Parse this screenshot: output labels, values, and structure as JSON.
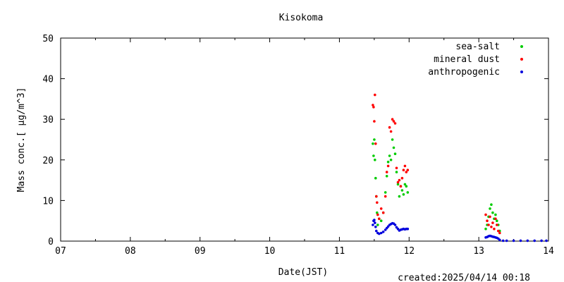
{
  "created": "created:2025/04/14 00:18",
  "chart_data": {
    "type": "scatter",
    "title": "Kisokoma",
    "xlabel": "Date(JST)",
    "ylabel": "Mass conc.[ μg/m^3]",
    "xlim": [
      7,
      14
    ],
    "ylim": [
      0,
      50
    ],
    "x_ticks": [
      {
        "value": 7,
        "label": "07"
      },
      {
        "value": 8,
        "label": "08"
      },
      {
        "value": 9,
        "label": "09"
      },
      {
        "value": 10,
        "label": "10"
      },
      {
        "value": 11,
        "label": "11"
      },
      {
        "value": 12,
        "label": "12"
      },
      {
        "value": 13,
        "label": "13"
      },
      {
        "value": 14,
        "label": "14"
      }
    ],
    "y_ticks": [
      {
        "value": 0,
        "label": "0"
      },
      {
        "value": 10,
        "label": "10"
      },
      {
        "value": 20,
        "label": "20"
      },
      {
        "value": 30,
        "label": "30"
      },
      {
        "value": 40,
        "label": "40"
      },
      {
        "value": 50,
        "label": "50"
      }
    ],
    "grid": false,
    "legend_position": "top-right",
    "series": [
      {
        "name": "sea-salt",
        "color": "#00cc00",
        "points": [
          [
            11.48,
            24.0
          ],
          [
            11.49,
            21.0
          ],
          [
            11.5,
            25.0
          ],
          [
            11.51,
            20.0
          ],
          [
            11.52,
            15.5
          ],
          [
            11.53,
            11.0
          ],
          [
            11.54,
            7.0
          ],
          [
            11.55,
            4.0
          ],
          [
            11.57,
            5.5
          ],
          [
            11.6,
            5.0
          ],
          [
            11.63,
            7.0
          ],
          [
            11.66,
            12.0
          ],
          [
            11.68,
            16.0
          ],
          [
            11.7,
            19.5
          ],
          [
            11.72,
            21.0
          ],
          [
            11.74,
            20.0
          ],
          [
            11.76,
            25.0
          ],
          [
            11.78,
            23.0
          ],
          [
            11.8,
            21.5
          ],
          [
            11.82,
            17.0
          ],
          [
            11.84,
            14.0
          ],
          [
            11.86,
            11.0
          ],
          [
            11.88,
            13.5
          ],
          [
            11.9,
            12.5
          ],
          [
            11.92,
            11.5
          ],
          [
            11.94,
            14.0
          ],
          [
            11.96,
            13.5
          ],
          [
            11.98,
            12.0
          ],
          [
            13.1,
            3.0
          ],
          [
            13.12,
            4.0
          ],
          [
            13.14,
            6.0
          ],
          [
            13.16,
            8.0
          ],
          [
            13.18,
            9.0
          ],
          [
            13.2,
            7.0
          ],
          [
            13.22,
            5.5
          ],
          [
            13.24,
            6.5
          ],
          [
            13.26,
            5.0
          ],
          [
            13.28,
            4.0
          ],
          [
            13.3,
            2.5
          ]
        ]
      },
      {
        "name": "mineral dust",
        "color": "#ff0000",
        "points": [
          [
            11.48,
            33.5
          ],
          [
            11.49,
            33.0
          ],
          [
            11.5,
            29.5
          ],
          [
            11.51,
            36.0
          ],
          [
            11.52,
            24.0
          ],
          [
            11.53,
            11.0
          ],
          [
            11.54,
            9.5
          ],
          [
            11.55,
            6.5
          ],
          [
            11.57,
            5.5
          ],
          [
            11.6,
            8.0
          ],
          [
            11.63,
            7.0
          ],
          [
            11.66,
            11.0
          ],
          [
            11.68,
            17.0
          ],
          [
            11.7,
            18.5
          ],
          [
            11.72,
            28.0
          ],
          [
            11.74,
            27.0
          ],
          [
            11.76,
            30.0
          ],
          [
            11.78,
            29.5
          ],
          [
            11.8,
            29.0
          ],
          [
            11.82,
            18.0
          ],
          [
            11.84,
            14.5
          ],
          [
            11.86,
            15.0
          ],
          [
            11.88,
            13.5
          ],
          [
            11.9,
            15.5
          ],
          [
            11.92,
            17.5
          ],
          [
            11.94,
            18.5
          ],
          [
            11.96,
            17.0
          ],
          [
            11.98,
            17.5
          ],
          [
            13.1,
            6.5
          ],
          [
            13.12,
            5.0
          ],
          [
            13.14,
            4.0
          ],
          [
            13.16,
            6.0
          ],
          [
            13.18,
            3.5
          ],
          [
            13.2,
            4.5
          ],
          [
            13.22,
            3.0
          ],
          [
            13.24,
            5.5
          ],
          [
            13.26,
            4.0
          ],
          [
            13.28,
            2.5
          ],
          [
            13.3,
            2.0
          ]
        ]
      },
      {
        "name": "anthropogenic",
        "color": "#0000dd",
        "points": [
          [
            11.48,
            4.0
          ],
          [
            11.49,
            5.0
          ],
          [
            11.5,
            5.2
          ],
          [
            11.51,
            4.5
          ],
          [
            11.52,
            3.5
          ],
          [
            11.53,
            2.5
          ],
          [
            11.55,
            2.0
          ],
          [
            11.57,
            1.8
          ],
          [
            11.6,
            2.0
          ],
          [
            11.63,
            2.3
          ],
          [
            11.66,
            2.8
          ],
          [
            11.68,
            3.2
          ],
          [
            11.7,
            3.6
          ],
          [
            11.72,
            4.0
          ],
          [
            11.74,
            4.2
          ],
          [
            11.76,
            4.4
          ],
          [
            11.78,
            4.3
          ],
          [
            11.8,
            4.0
          ],
          [
            11.82,
            3.4
          ],
          [
            11.84,
            3.0
          ],
          [
            11.86,
            2.6
          ],
          [
            11.88,
            2.8
          ],
          [
            11.9,
            2.9
          ],
          [
            11.92,
            3.0
          ],
          [
            11.94,
            2.9
          ],
          [
            11.96,
            3.0
          ],
          [
            11.98,
            3.0
          ],
          [
            13.1,
            0.9
          ],
          [
            13.12,
            1.0
          ],
          [
            13.14,
            1.2
          ],
          [
            13.16,
            1.3
          ],
          [
            13.18,
            1.2
          ],
          [
            13.2,
            1.1
          ],
          [
            13.22,
            1.0
          ],
          [
            13.24,
            0.9
          ],
          [
            13.26,
            0.8
          ],
          [
            13.28,
            0.6
          ],
          [
            13.3,
            0.3
          ],
          [
            13.35,
            0.1
          ],
          [
            13.4,
            0.1
          ],
          [
            13.5,
            0.1
          ],
          [
            13.6,
            0.1
          ],
          [
            13.7,
            0.1
          ],
          [
            13.8,
            0.1
          ],
          [
            13.9,
            0.1
          ],
          [
            13.97,
            0.1
          ]
        ]
      }
    ]
  }
}
